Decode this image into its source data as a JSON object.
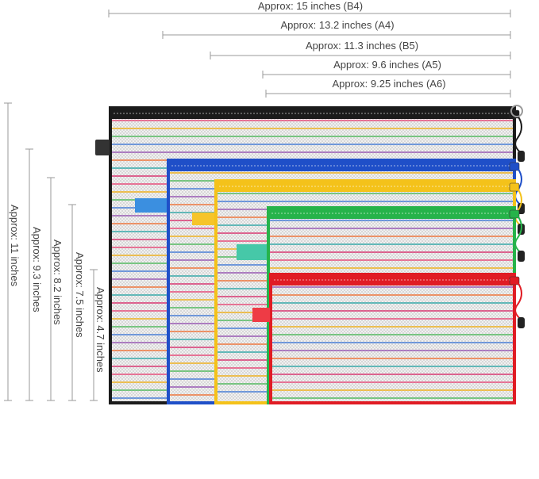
{
  "widths": [
    {
      "label": "Approx: 15 inches (B4)"
    },
    {
      "label": "Approx: 13.2 inches (A4)"
    },
    {
      "label": "Approx: 11.3 inches (B5)"
    },
    {
      "label": "Approx: 9.6 inches (A5)"
    },
    {
      "label": "Approx: 9.25 inches (A6)"
    }
  ],
  "heights": [
    {
      "label": "Approx: 11 inches"
    },
    {
      "label": "Approx: 9.3 inches"
    },
    {
      "label": "Approx: 8.2 inches"
    },
    {
      "label": "Approx: 7.5 inches"
    },
    {
      "label": "Approx: 4.7 inches"
    }
  ],
  "bags": [
    {
      "name": "black-mesh-bag",
      "color": "#1b1b1b"
    },
    {
      "name": "blue-mesh-bag",
      "color": "#1f4fc8"
    },
    {
      "name": "yellow-mesh-bag",
      "color": "#f4c21a"
    },
    {
      "name": "green-mesh-bag",
      "color": "#26b34a"
    },
    {
      "name": "red-mesh-bag",
      "color": "#e01c24"
    }
  ],
  "stripe_colors": [
    "#e8356a",
    "#f2a900",
    "#3cb44b",
    "#2f6fd6",
    "#8e44ad",
    "#f26522",
    "#1aa0a0",
    "#d81b60"
  ]
}
